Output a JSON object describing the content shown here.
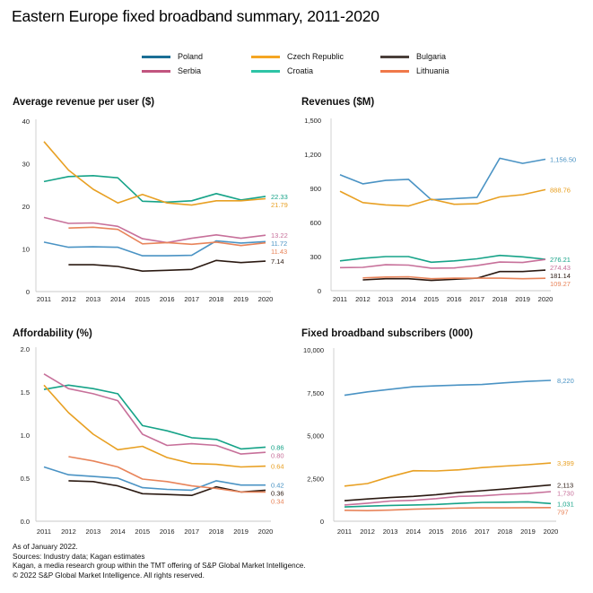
{
  "title": "Eastern Europe fixed broadband summary, 2011-2020",
  "legend": [
    {
      "name": "Poland",
      "color": "#1b6f96"
    },
    {
      "name": "Czech Republic",
      "color": "#f5a623"
    },
    {
      "name": "Bulgaria",
      "color": "#4a3f3a"
    },
    {
      "name": "Serbia",
      "color": "#c2557f"
    },
    {
      "name": "Croatia",
      "color": "#2ec4a6"
    },
    {
      "name": "Lithuania",
      "color": "#f0794a"
    }
  ],
  "series_colors": {
    "Poland": "#4a93c4",
    "Czech Republic": "#e8a023",
    "Bulgaria": "#2b1a12",
    "Serbia": "#c7709a",
    "Croatia": "#16a388",
    "Lithuania": "#e8845a"
  },
  "chart_data": [
    {
      "type": "line",
      "title": "Average revenue per user ($)",
      "categories": [
        "2011",
        "2012",
        "2013",
        "2014",
        "2015",
        "2016",
        "2017",
        "2018",
        "2019",
        "2020"
      ],
      "ylim": [
        0,
        40
      ],
      "yticks": [
        "0",
        "10",
        "20",
        "30",
        "40"
      ],
      "ytick_values": [
        0,
        10,
        20,
        30,
        40
      ],
      "series": [
        {
          "name": "Croatia",
          "values": [
            25.8,
            27.0,
            27.2,
            26.7,
            21.2,
            21.0,
            21.3,
            23.0,
            21.5,
            22.33
          ],
          "end_label": "22.33"
        },
        {
          "name": "Czech Republic",
          "values": [
            35.2,
            28.5,
            24.0,
            20.8,
            22.8,
            20.8,
            20.3,
            21.3,
            21.3,
            21.79
          ],
          "end_label": "21.79"
        },
        {
          "name": "Serbia",
          "values": [
            17.4,
            16.0,
            16.1,
            15.3,
            12.4,
            11.5,
            12.5,
            13.3,
            12.5,
            13.22
          ],
          "end_label": "13.22"
        },
        {
          "name": "Poland",
          "values": [
            11.6,
            10.4,
            10.5,
            10.4,
            8.4,
            8.4,
            8.5,
            11.9,
            11.4,
            11.72
          ],
          "end_label": "11.72"
        },
        {
          "name": "Lithuania",
          "values": [
            null,
            14.9,
            15.1,
            14.6,
            11.2,
            11.5,
            11.1,
            11.6,
            10.8,
            11.43
          ],
          "end_label": "11.43"
        },
        {
          "name": "Bulgaria",
          "values": [
            null,
            6.3,
            6.3,
            5.9,
            4.8,
            5.0,
            5.2,
            7.3,
            6.8,
            7.14
          ],
          "end_label": "7.14"
        }
      ]
    },
    {
      "type": "line",
      "title": "Revenues ($M)",
      "categories": [
        "2011",
        "2012",
        "2013",
        "2014",
        "2015",
        "2016",
        "2017",
        "2018",
        "2019",
        "2020"
      ],
      "ylim": [
        0,
        1500
      ],
      "yticks": [
        "0",
        "300",
        "600",
        "900",
        "1,200",
        "1,500"
      ],
      "ytick_values": [
        0,
        300,
        600,
        900,
        1200,
        1500
      ],
      "series": [
        {
          "name": "Poland",
          "values": [
            1020,
            940,
            970,
            980,
            800,
            810,
            820,
            1165,
            1120,
            1156.5
          ],
          "end_label": "1,156.50"
        },
        {
          "name": "Czech Republic",
          "values": [
            875,
            775,
            755,
            745,
            805,
            760,
            765,
            825,
            845,
            888.76
          ],
          "end_label": "888.76"
        },
        {
          "name": "Croatia",
          "values": [
            262,
            285,
            300,
            300,
            250,
            262,
            280,
            310,
            298,
            276.21
          ],
          "end_label": "276.21"
        },
        {
          "name": "Serbia",
          "values": [
            203,
            205,
            228,
            225,
            198,
            200,
            222,
            252,
            248,
            274.43
          ],
          "end_label": "274.43"
        },
        {
          "name": "Bulgaria",
          "values": [
            null,
            95,
            105,
            105,
            90,
            100,
            110,
            168,
            168,
            181.14
          ],
          "end_label": "181.14"
        },
        {
          "name": "Lithuania",
          "values": [
            null,
            112,
            120,
            122,
            105,
            110,
            110,
            110,
            105,
            109.27
          ],
          "end_label": "109.27"
        }
      ]
    },
    {
      "type": "line",
      "title": "Affordability (%)",
      "categories": [
        "2011",
        "2012",
        "2013",
        "2014",
        "2015",
        "2016",
        "2017",
        "2018",
        "2019",
        "2020"
      ],
      "ylim": [
        0,
        2.0
      ],
      "yticks": [
        "0.0",
        "0.5",
        "1.0",
        "1.5",
        "2.0"
      ],
      "ytick_values": [
        0,
        0.5,
        1.0,
        1.5,
        2.0
      ],
      "series": [
        {
          "name": "Croatia",
          "values": [
            1.53,
            1.58,
            1.54,
            1.48,
            1.11,
            1.05,
            0.97,
            0.95,
            0.84,
            0.86
          ],
          "end_label": "0.86"
        },
        {
          "name": "Serbia",
          "values": [
            1.71,
            1.54,
            1.48,
            1.4,
            1.01,
            0.88,
            0.9,
            0.88,
            0.78,
            0.8
          ],
          "end_label": "0.80"
        },
        {
          "name": "Czech Republic",
          "values": [
            1.58,
            1.26,
            1.01,
            0.83,
            0.87,
            0.74,
            0.67,
            0.66,
            0.63,
            0.64
          ],
          "end_label": "0.64"
        },
        {
          "name": "Poland",
          "values": [
            0.63,
            0.54,
            0.52,
            0.5,
            0.39,
            0.37,
            0.36,
            0.47,
            0.42,
            0.42
          ],
          "end_label": "0.42"
        },
        {
          "name": "Bulgaria",
          "values": [
            null,
            0.47,
            0.46,
            0.41,
            0.32,
            0.31,
            0.3,
            0.4,
            0.34,
            0.36
          ],
          "end_label": "0.36"
        },
        {
          "name": "Lithuania",
          "values": [
            null,
            0.75,
            0.7,
            0.63,
            0.49,
            0.46,
            0.41,
            0.38,
            0.34,
            0.34
          ],
          "end_label": "0.34"
        }
      ]
    },
    {
      "type": "line",
      "title": "Fixed broadband subscribers (000)",
      "categories": [
        "2011",
        "2012",
        "2013",
        "2014",
        "2015",
        "2016",
        "2017",
        "2018",
        "2019",
        "2020"
      ],
      "ylim": [
        0,
        10000
      ],
      "yticks": [
        "0",
        "2,500",
        "5,000",
        "7,500",
        "10,000"
      ],
      "ytick_values": [
        0,
        2500,
        5000,
        7500,
        10000
      ],
      "series": [
        {
          "name": "Poland",
          "values": [
            7350,
            7550,
            7700,
            7850,
            7900,
            7950,
            7980,
            8080,
            8160,
            8220
          ],
          "end_label": "8,220"
        },
        {
          "name": "Czech Republic",
          "values": [
            2050,
            2200,
            2600,
            2950,
            2930,
            3000,
            3130,
            3220,
            3300,
            3399
          ],
          "end_label": "3,399"
        },
        {
          "name": "Bulgaria",
          "values": [
            1200,
            1300,
            1380,
            1450,
            1550,
            1680,
            1780,
            1880,
            2000,
            2113
          ],
          "end_label": "2,113"
        },
        {
          "name": "Serbia",
          "values": [
            950,
            1050,
            1180,
            1220,
            1320,
            1450,
            1480,
            1570,
            1620,
            1730
          ],
          "end_label": "1,730"
        },
        {
          "name": "Croatia",
          "values": [
            830,
            880,
            920,
            950,
            980,
            1040,
            1100,
            1110,
            1130,
            1031
          ],
          "end_label": "1,031"
        },
        {
          "name": "Lithuania",
          "values": [
            640,
            620,
            650,
            700,
            740,
            770,
            780,
            780,
            790,
            797
          ],
          "end_label": "797"
        }
      ]
    }
  ],
  "footer": {
    "line1": "As of January 2022.",
    "line2": "Sources: Industry data; Kagan estimates",
    "line3": "Kagan, a media research group within the TMT offering of S&P Global Market Intelligence.",
    "line4": "© 2022 S&P Global Market Intelligence. All rights reserved."
  }
}
